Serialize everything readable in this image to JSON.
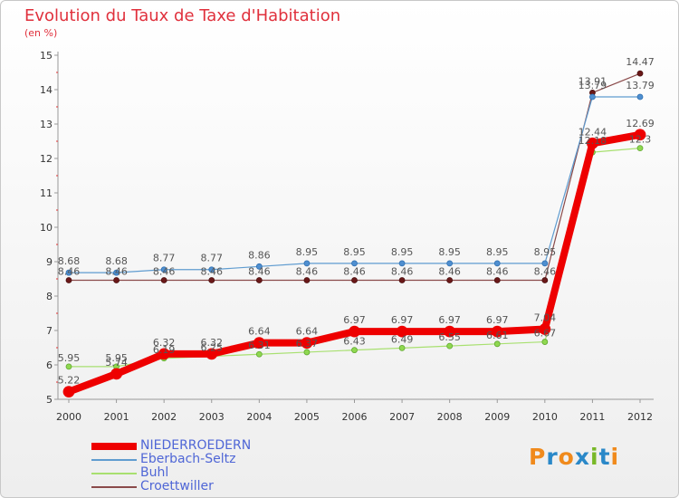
{
  "header": {
    "title": "Evolution du Taux de Taxe d'Habitation",
    "unit": "(en %)"
  },
  "brand": {
    "letters": [
      "P",
      "r",
      "o",
      "x",
      "i",
      "t",
      "i"
    ],
    "colors": [
      "#f08a1c",
      "#2a88c8",
      "#f08a1c",
      "#2a88c8",
      "#78b828",
      "#2a88c8",
      "#f08a1c"
    ]
  },
  "chart_data": {
    "type": "line",
    "title": "Evolution du Taux de Taxe d'Habitation",
    "ylabel": "(en %)",
    "xlabel": "",
    "categories": [
      "2000",
      "2001",
      "2002",
      "2003",
      "2004",
      "2005",
      "2006",
      "2007",
      "2008",
      "2009",
      "2010",
      "2011",
      "2012"
    ],
    "ylim": [
      5,
      15
    ],
    "yticks": [
      "5",
      "6",
      "7",
      "8",
      "9",
      "10",
      "11",
      "12",
      "13",
      "14",
      "15"
    ],
    "grid": false,
    "legend_position": "bottom-left",
    "series": [
      {
        "name": "NIEDERROEDERN",
        "color": "#ee0000",
        "values": [
          5.22,
          5.74,
          6.32,
          6.32,
          6.64,
          6.64,
          6.97,
          6.97,
          6.97,
          6.97,
          7.04,
          12.44,
          12.69
        ],
        "labels": [
          "5.22",
          "5.74",
          "6.32",
          "6.32",
          "6.64",
          "6.64",
          "6.97",
          "6.97",
          "6.97",
          "6.97",
          "7.04",
          "12.44",
          "12.69"
        ]
      },
      {
        "name": "Eberbach-Seltz",
        "color": "#5f9cd0",
        "values": [
          8.68,
          8.68,
          8.77,
          8.77,
          8.86,
          8.95,
          8.95,
          8.95,
          8.95,
          8.95,
          8.95,
          13.79,
          13.79
        ],
        "labels": [
          "8.68",
          "8.68",
          "8.77",
          "8.77",
          "8.86",
          "8.95",
          "8.95",
          "8.95",
          "8.95",
          "8.95",
          "8.95",
          "13.79",
          "13.79"
        ]
      },
      {
        "name": "Buhl",
        "color": "#a8e070",
        "values": [
          5.95,
          5.95,
          6.19,
          6.25,
          6.31,
          6.37,
          6.43,
          6.49,
          6.55,
          6.61,
          6.67,
          12.18,
          12.3
        ],
        "labels": [
          "5.95",
          "5.95",
          "6.19",
          "6.25",
          "6.31",
          "6.37",
          "6.43",
          "6.49",
          "6.55",
          "6.61",
          "6.67",
          "12.18",
          "12.3"
        ]
      },
      {
        "name": "Croettwiller",
        "color": "#8a4a4a",
        "values": [
          8.46,
          8.46,
          8.46,
          8.46,
          8.46,
          8.46,
          8.46,
          8.46,
          8.46,
          8.46,
          8.46,
          13.91,
          14.47
        ],
        "labels": [
          "8.46",
          "8.46",
          "8.46",
          "8.46",
          "8.46",
          "8.46",
          "8.46",
          "8.46",
          "8.46",
          "8.46",
          "8.46",
          "13.91",
          "14.47"
        ]
      }
    ]
  }
}
